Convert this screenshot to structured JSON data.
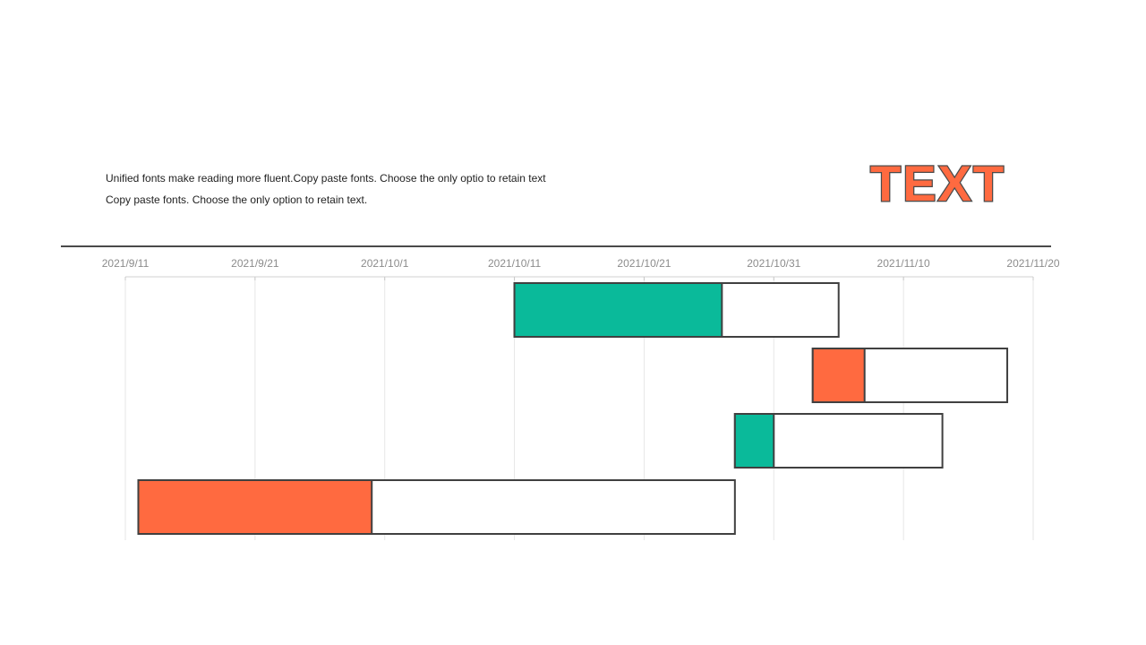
{
  "header": {
    "line1": "Unified fonts make reading more fluent.Copy paste fonts. Choose the only optio to retain text",
    "line2": "Copy paste  fonts. Choose the only option to retain text.",
    "badge": "TEXT"
  },
  "colors": {
    "teal": "#0aba9a",
    "orange": "#ff6a40",
    "outline": "#404040",
    "grid": "#e6e6e6"
  },
  "chart_data": {
    "type": "gantt",
    "title": "",
    "x_ticks": [
      "2021/9/11",
      "2021/9/21",
      "2021/10/1",
      "2021/10/11",
      "2021/10/21",
      "2021/10/31",
      "2021/11/10",
      "2021/11/20"
    ],
    "xlim": [
      "2021-09-11",
      "2021-11-20"
    ],
    "tasks": [
      {
        "start": "2021-10-11",
        "progress_end": "2021-10-27",
        "end": "2021-11-05",
        "color": "teal"
      },
      {
        "start": "2021-11-03",
        "progress_end": "2021-11-07",
        "end": "2021-11-18",
        "color": "orange"
      },
      {
        "start": "2021-10-28",
        "progress_end": "2021-10-31",
        "end": "2021-11-13",
        "color": "teal"
      },
      {
        "start": "2021-09-12",
        "progress_end": "2021-09-30",
        "end": "2021-10-28",
        "color": "orange"
      }
    ]
  }
}
